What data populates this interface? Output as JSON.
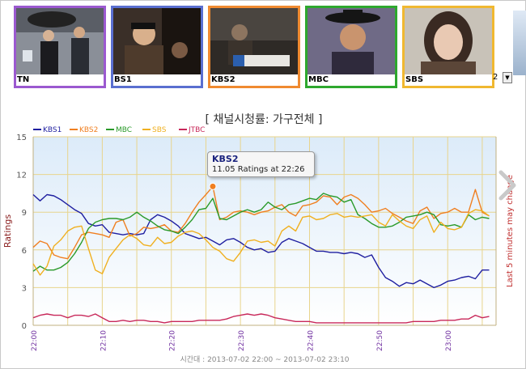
{
  "thumbnails": [
    {
      "caption": "TN",
      "border": "#9b59d0",
      "scene": "news"
    },
    {
      "caption": "BS1",
      "border": "#5a6fd0",
      "scene": "street"
    },
    {
      "caption": "KBS2",
      "border": "#f08a30",
      "scene": "office"
    },
    {
      "caption": "MBC",
      "border": "#2ea82e",
      "scene": "drama"
    },
    {
      "caption": "SBS",
      "border": "#f0b830",
      "scene": "portrait"
    }
  ],
  "controls": {
    "page_number": "2"
  },
  "chart_data": {
    "type": "line",
    "title": "[ 채널시청률: 가구전체 ]",
    "ylabel": "Ratings",
    "y2label": "Last 5 minutes may change",
    "xlabel": "시간대 : 2013-07-02 22:00 ~ 2013-07-02 23:10",
    "ylim": [
      0,
      15
    ],
    "yticks": [
      "0",
      "3",
      "6",
      "9",
      "12",
      "15"
    ],
    "xlim": [
      0,
      67
    ],
    "xticks": [
      {
        "t": 0,
        "label": "22:00"
      },
      {
        "t": 10,
        "label": "22:10"
      },
      {
        "t": 20,
        "label": "22:20"
      },
      {
        "t": 30,
        "label": "22:30"
      },
      {
        "t": 40,
        "label": "22:40"
      },
      {
        "t": 50,
        "label": "22:50"
      },
      {
        "t": 60,
        "label": "23:00"
      }
    ],
    "legend_position": "top-left",
    "grid": true,
    "series": [
      {
        "name": "KBS1",
        "color": "#1f1fa0",
        "values": [
          10.4,
          9.9,
          10.4,
          10.3,
          10.0,
          9.6,
          9.2,
          8.9,
          8.1,
          7.9,
          8.0,
          7.4,
          7.3,
          7.2,
          7.3,
          7.2,
          7.3,
          8.4,
          8.8,
          8.6,
          8.3,
          7.9,
          7.3,
          7.1,
          6.9,
          7.0,
          6.7,
          6.4,
          6.8,
          6.9,
          6.6,
          6.2,
          6.0,
          6.1,
          5.8,
          5.9,
          6.6,
          6.9,
          6.7,
          6.5,
          6.2,
          5.9,
          5.9,
          5.8,
          5.8,
          5.7,
          5.8,
          5.7,
          5.4,
          5.6,
          4.6,
          3.8,
          3.5,
          3.1,
          3.4,
          3.3,
          3.6,
          3.3,
          3.0,
          3.2,
          3.5,
          3.6,
          3.8,
          3.9,
          3.7,
          4.4,
          4.4
        ]
      },
      {
        "name": "KBS2",
        "color": "#f07f20",
        "values": [
          6.2,
          6.7,
          6.5,
          5.6,
          5.4,
          5.3,
          6.2,
          7.2,
          7.4,
          7.3,
          7.2,
          7.0,
          8.2,
          8.4,
          7.1,
          7.3,
          7.8,
          7.7,
          7.8,
          8.0,
          7.5,
          7.4,
          8.1,
          9.0,
          9.8,
          10.4,
          11.05,
          8.4,
          8.6,
          9.0,
          9.1,
          9.0,
          8.8,
          9.0,
          9.1,
          9.4,
          9.6,
          9.0,
          8.7,
          9.5,
          9.6,
          9.8,
          10.3,
          10.2,
          9.6,
          10.2,
          10.4,
          10.1,
          9.6,
          9.0,
          9.1,
          9.3,
          8.9,
          8.6,
          8.3,
          8.1,
          9.1,
          9.4,
          8.5,
          8.9,
          9.0,
          9.3,
          9.0,
          9.0,
          10.8,
          9.0,
          8.7
        ]
      },
      {
        "name": "MBC",
        "color": "#2a9a2a",
        "values": [
          4.3,
          4.7,
          4.4,
          4.4,
          4.6,
          5.0,
          5.7,
          6.6,
          7.7,
          8.2,
          8.4,
          8.5,
          8.5,
          8.4,
          8.6,
          9.0,
          8.6,
          8.3,
          7.9,
          7.6,
          7.5,
          7.3,
          7.8,
          8.4,
          9.2,
          9.3,
          10.1,
          8.5,
          8.4,
          8.7,
          9.0,
          9.2,
          9.0,
          9.2,
          9.8,
          9.4,
          9.2,
          9.6,
          9.7,
          9.9,
          10.1,
          10.0,
          10.5,
          10.3,
          10.2,
          9.8,
          10.0,
          8.8,
          8.5,
          8.1,
          7.8,
          7.8,
          7.9,
          8.2,
          8.6,
          8.7,
          8.8,
          9.0,
          8.8,
          8.0,
          7.9,
          8.0,
          7.8,
          8.8,
          8.4,
          8.6,
          8.5
        ]
      },
      {
        "name": "SBS",
        "color": "#f0b020",
        "values": [
          4.9,
          4.0,
          4.7,
          6.3,
          6.8,
          7.5,
          7.8,
          7.9,
          6.1,
          4.4,
          4.1,
          5.4,
          6.1,
          6.8,
          7.2,
          6.9,
          6.4,
          6.3,
          7.0,
          6.5,
          6.6,
          7.1,
          7.4,
          7.5,
          7.3,
          6.8,
          6.2,
          5.9,
          5.3,
          5.1,
          5.8,
          6.7,
          6.8,
          6.6,
          6.7,
          6.3,
          7.5,
          7.9,
          7.5,
          8.6,
          8.7,
          8.4,
          8.5,
          8.8,
          8.9,
          8.6,
          8.7,
          8.6,
          8.7,
          8.8,
          8.2,
          7.9,
          8.8,
          8.3,
          7.9,
          7.7,
          8.4,
          8.7,
          7.4,
          8.2,
          7.7,
          7.6,
          7.8,
          8.9,
          9.2,
          9.1,
          8.7
        ]
      },
      {
        "name": "JTBC",
        "color": "#c8285a",
        "values": [
          0.6,
          0.8,
          0.9,
          0.8,
          0.8,
          0.6,
          0.8,
          0.8,
          0.7,
          0.9,
          0.6,
          0.3,
          0.3,
          0.4,
          0.3,
          0.4,
          0.4,
          0.3,
          0.3,
          0.2,
          0.3,
          0.3,
          0.3,
          0.3,
          0.4,
          0.4,
          0.4,
          0.4,
          0.5,
          0.7,
          0.8,
          0.9,
          0.8,
          0.9,
          0.8,
          0.6,
          0.5,
          0.4,
          0.3,
          0.3,
          0.3,
          0.2,
          0.2,
          0.2,
          0.2,
          0.2,
          0.2,
          0.2,
          0.2,
          0.2,
          0.2,
          0.2,
          0.2,
          0.2,
          0.2,
          0.3,
          0.3,
          0.3,
          0.3,
          0.4,
          0.4,
          0.4,
          0.5,
          0.5,
          0.8,
          0.6,
          0.7
        ]
      }
    ],
    "tooltip": {
      "series": "KBS2",
      "text": "11.05 Ratings at 22:26",
      "t": 26,
      "value": 11.05
    }
  }
}
